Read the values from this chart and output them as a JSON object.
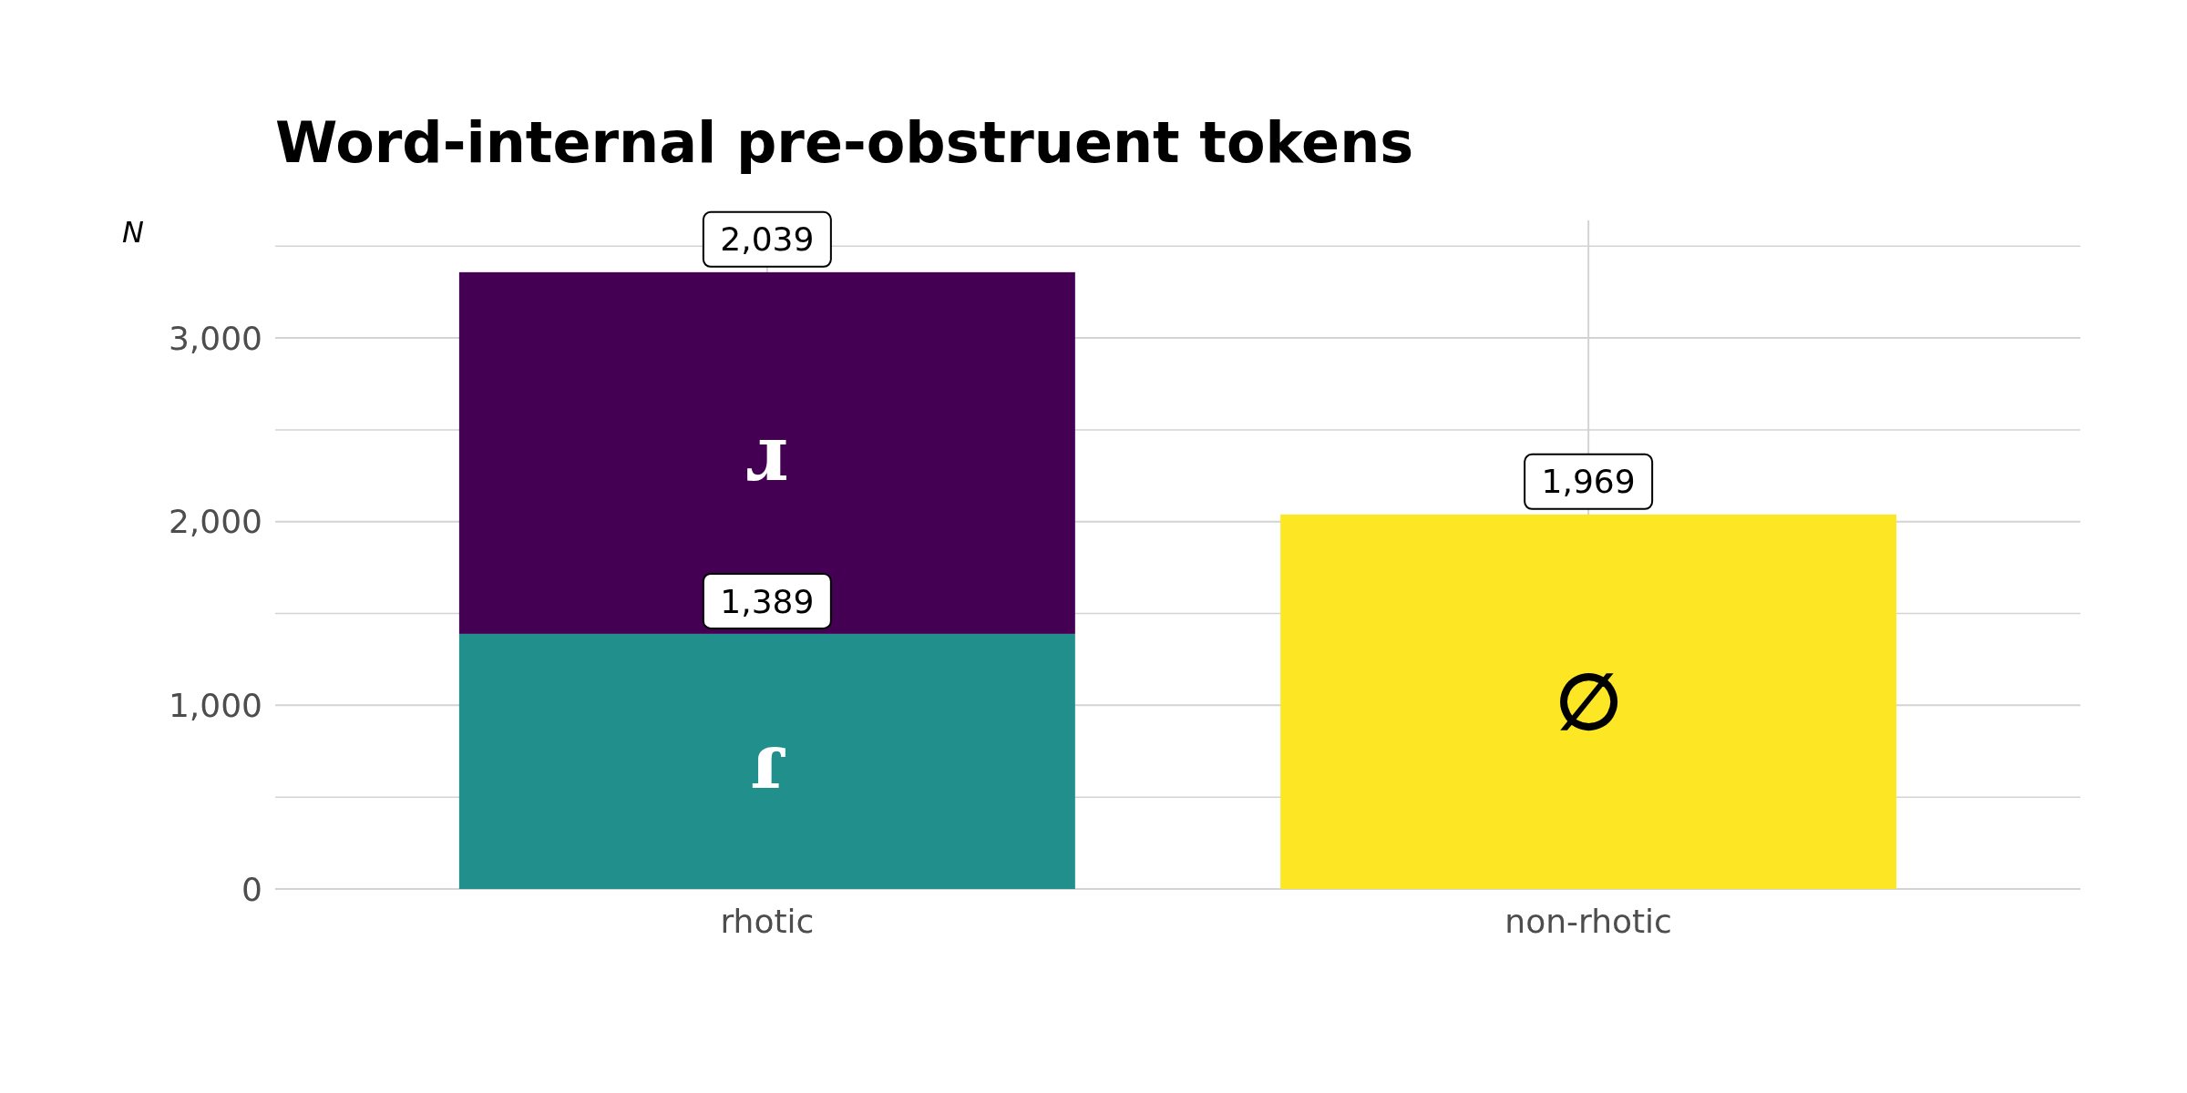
{
  "chart_data": {
    "type": "bar",
    "title": "Word-internal pre-obstruent tokens",
    "ylabel": "N",
    "categories": [
      "rhotic",
      "non-rhotic"
    ],
    "stacked": true,
    "grid": true,
    "legend": false,
    "series": [
      {
        "name": "ɾ",
        "color": "#21908c",
        "values": [
          1389,
          null
        ]
      },
      {
        "name": "ɹ",
        "color": "#440154",
        "values": [
          1969,
          null
        ]
      },
      {
        "name": "∅",
        "color": "#fde725",
        "values": [
          null,
          2039
        ]
      }
    ],
    "ylim": [
      0,
      3640
    ],
    "yticks": [
      0,
      {
        "value": 500,
        "label": null
      },
      {
        "value": 1000,
        "label": "1,000"
      },
      {
        "value": 1500,
        "label": null
      },
      {
        "value": 2000,
        "label": "2,000"
      },
      {
        "value": 2500,
        "label": null
      },
      {
        "value": 3000,
        "label": "3,000"
      },
      {
        "value": 3500,
        "label": null
      }
    ],
    "annotations": [
      {
        "text": "2,039",
        "x": "rhotic",
        "y": 3358
      },
      {
        "text": "1,389",
        "x": "rhotic",
        "y": 1389
      },
      {
        "text": "1,969",
        "x": "non-rhotic",
        "y": 2039
      }
    ]
  }
}
